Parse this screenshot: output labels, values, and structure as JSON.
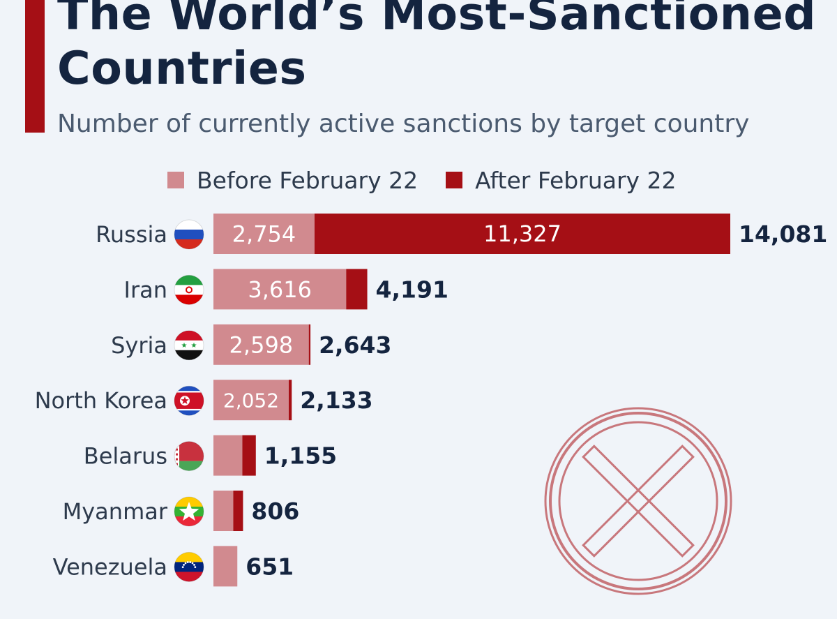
{
  "header": {
    "title": "The World’s Most-Sanctioned Countries",
    "subtitle": "Number of currently active sanctions by target country"
  },
  "legend": {
    "before_label": "Before February 22",
    "after_label": "After February 22"
  },
  "colors": {
    "before": "#d18a8f",
    "after": "#a50f15",
    "title": "#14243f",
    "accent": "#a50f15",
    "background": "#f0f4f9"
  },
  "decoration": {
    "icon": "cross-circle-icon"
  },
  "chart_data": {
    "type": "bar",
    "orientation": "horizontal",
    "stacked": true,
    "title": "The World’s Most-Sanctioned Countries",
    "subtitle": "Number of currently active sanctions by target country",
    "legend_position": "top",
    "grid": false,
    "categories": [
      "Russia",
      "Iran",
      "Syria",
      "North Korea",
      "Belarus",
      "Myanmar",
      "Venezuela"
    ],
    "category_flags": [
      "russia-flag-icon",
      "iran-flag-icon",
      "syria-flag-icon",
      "north-korea-flag-icon",
      "belarus-flag-icon",
      "myanmar-flag-icon",
      "venezuela-flag-icon"
    ],
    "series": [
      {
        "name": "Before February 22",
        "values": [
          2754,
          3616,
          2598,
          2052,
          788,
          540,
          651
        ]
      },
      {
        "name": "After February 22",
        "values": [
          11327,
          575,
          45,
          81,
          367,
          266,
          0
        ]
      }
    ],
    "segment_labels": [
      [
        "2,754",
        "11,327"
      ],
      [
        "3,616",
        ""
      ],
      [
        "2,598",
        ""
      ],
      [
        "2,052",
        ""
      ],
      [
        "",
        ""
      ],
      [
        "",
        ""
      ],
      [
        "",
        ""
      ]
    ],
    "totals": [
      14081,
      4191,
      2643,
      2133,
      1155,
      806,
      651
    ],
    "total_labels": [
      "14,081",
      "4,191",
      "2,643",
      "2,133",
      "1,155",
      "806",
      "651"
    ]
  }
}
